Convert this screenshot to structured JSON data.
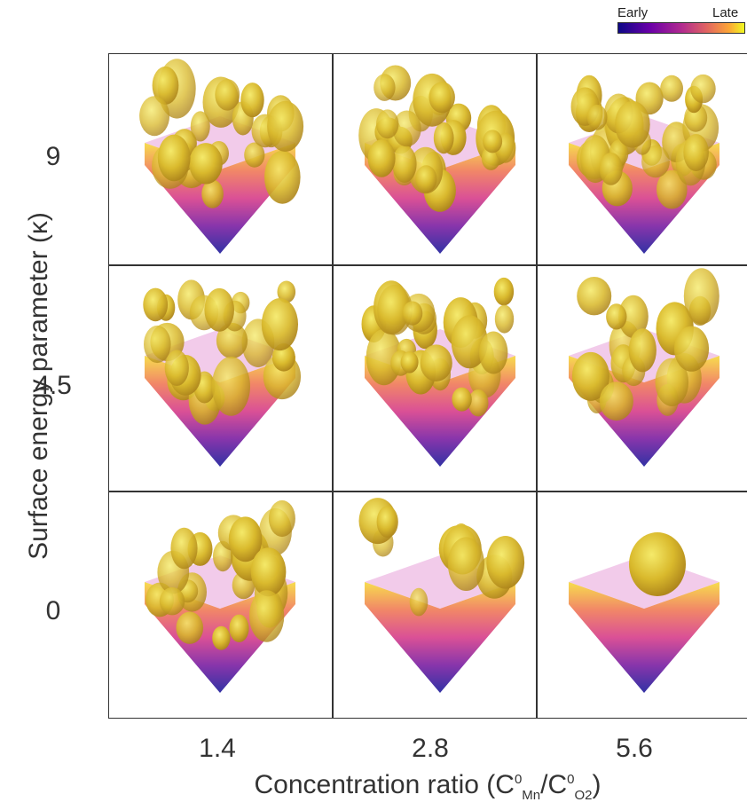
{
  "legend": {
    "early_label": "Early",
    "late_label": "Late",
    "colormap": [
      "#0d0887",
      "#6a00a8",
      "#b12a90",
      "#e16462",
      "#fca636",
      "#f0f921"
    ]
  },
  "y_axis": {
    "label": "Surface energy parameter (κ)",
    "ticks": [
      "9",
      "4.5",
      "0"
    ]
  },
  "x_axis": {
    "label_prefix": "Concentration ratio (C",
    "label_sup1": "0",
    "label_sub1": "Mn",
    "label_mid": "/C",
    "label_sup2": "0",
    "label_sub2": "O2",
    "label_suffix": ")",
    "ticks": [
      "1.4",
      "2.8",
      "5.6"
    ]
  },
  "panels": [
    {
      "kappa": "9",
      "ratio": "1.4",
      "density": "many-small"
    },
    {
      "kappa": "9",
      "ratio": "2.8",
      "density": "dense"
    },
    {
      "kappa": "9",
      "ratio": "5.6",
      "density": "very-dense"
    },
    {
      "kappa": "4.5",
      "ratio": "1.4",
      "density": "many-small"
    },
    {
      "kappa": "4.5",
      "ratio": "2.8",
      "density": "dense"
    },
    {
      "kappa": "4.5",
      "ratio": "5.6",
      "density": "medium"
    },
    {
      "kappa": "0",
      "ratio": "1.4",
      "density": "many-small"
    },
    {
      "kappa": "0",
      "ratio": "2.8",
      "density": "sparse"
    },
    {
      "kappa": "0",
      "ratio": "5.6",
      "density": "single"
    }
  ]
}
